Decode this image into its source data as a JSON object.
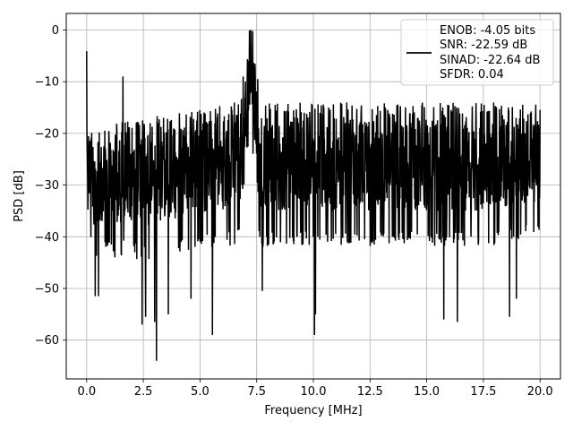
{
  "chart_data": {
    "type": "line",
    "title": "",
    "xlabel": "Frequency [MHz]",
    "ylabel": "PSD [dB]",
    "xlim": [
      -0.9,
      20.9
    ],
    "ylim": [
      -67.5,
      3.2
    ],
    "xticks": [
      0.0,
      2.5,
      5.0,
      7.5,
      10.0,
      12.5,
      15.0,
      17.5,
      20.0
    ],
    "xtick_labels": [
      "0.0",
      "2.5",
      "5.0",
      "7.5",
      "10.0",
      "12.5",
      "15.0",
      "17.5",
      "20.0"
    ],
    "yticks": [
      0,
      -10,
      -20,
      -30,
      -40,
      -50,
      -60
    ],
    "ytick_labels": [
      "0",
      "−10",
      "−20",
      "−30",
      "−40",
      "−50",
      "−60"
    ],
    "grid": true,
    "legend_position": "top-right",
    "line_color": "#000000",
    "legend": [
      "ENOB: -4.05 bits",
      "SNR: -22.59 dB",
      "SINAD: -22.64 dB",
      "SFDR: 0.04"
    ],
    "series": [
      {
        "noise_profile": {
          "x": [
            0.0,
            0.05,
            0.3,
            1.0,
            1.5,
            1.6,
            2.5,
            5.0,
            6.5,
            6.9,
            7.1,
            7.25,
            7.4,
            7.55,
            7.7,
            9.0,
            12.5,
            15.0,
            17.5,
            20.0
          ],
          "upper": [
            -4,
            -17,
            -19,
            -18,
            -18,
            -17,
            -17,
            -15,
            -14,
            -12,
            -4,
            0,
            -3,
            -13,
            -14,
            -14,
            -14,
            -14,
            -14,
            -14
          ],
          "lower": [
            -38,
            -36,
            -44,
            -44,
            -44,
            -43,
            -45,
            -42,
            -42,
            -40,
            -23,
            -24,
            -26,
            -40,
            -42,
            -42,
            -42,
            -42,
            -42,
            -40
          ]
        },
        "peaks": [
          {
            "x": 0.0,
            "y": -4.1
          },
          {
            "x": 1.6,
            "y": -9.0
          },
          {
            "x": 6.9,
            "y": -9.0
          },
          {
            "x": 7.18,
            "y": -0.1
          },
          {
            "x": 7.25,
            "y": 0.0
          },
          {
            "x": 7.33,
            "y": -0.2
          },
          {
            "x": 7.55,
            "y": -9.5
          }
        ],
        "dips": [
          {
            "x": 0.38,
            "y": -51.5
          },
          {
            "x": 0.52,
            "y": -51.5
          },
          {
            "x": 2.45,
            "y": -57.0
          },
          {
            "x": 2.6,
            "y": -55.5
          },
          {
            "x": 3.0,
            "y": -56.5
          },
          {
            "x": 3.08,
            "y": -64.0
          },
          {
            "x": 3.6,
            "y": -55.0
          },
          {
            "x": 4.6,
            "y": -52.0
          },
          {
            "x": 5.55,
            "y": -59.0
          },
          {
            "x": 7.75,
            "y": -50.5
          },
          {
            "x": 10.05,
            "y": -59.0
          },
          {
            "x": 10.1,
            "y": -55.0
          },
          {
            "x": 15.75,
            "y": -56.0
          },
          {
            "x": 16.35,
            "y": -56.5
          },
          {
            "x": 18.65,
            "y": -55.5
          },
          {
            "x": 18.95,
            "y": -52.0
          }
        ]
      }
    ]
  }
}
